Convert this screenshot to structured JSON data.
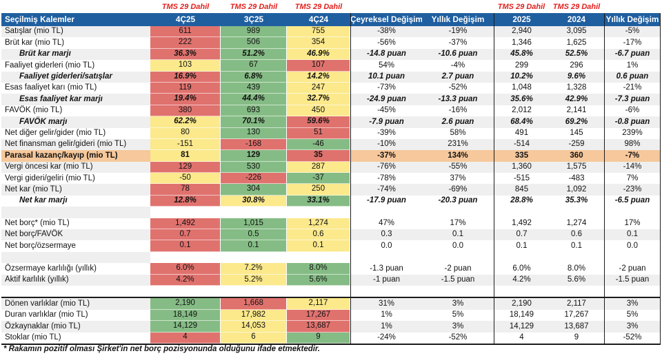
{
  "header": {
    "label": "Seçilmiş Kalemler",
    "tms_note": "TMS 29 Dahil",
    "columns": [
      "4Ç25",
      "3Ç25",
      "4Ç24",
      "Çeyreksel Değişim",
      "Yıllık Değişim",
      "2025",
      "2024",
      "Yıllık Değişim"
    ]
  },
  "colors": {
    "header_bg": "#1f5fa0",
    "header_text": "#ffffff",
    "tms_note_red": "#e0201c",
    "cell_red": "#e0726e",
    "cell_green": "#85bc85",
    "cell_yellow": "#fbe98c",
    "highlight_orange": "#f6c89b",
    "row_stripe": "#efefef"
  },
  "chart_data": {
    "type": "table",
    "title": "Seçilmiş Kalemler",
    "tms29_note_over_columns": [
      "4Ç25",
      "3Ç25",
      "4Ç24",
      "2025",
      "2024"
    ],
    "columns": [
      "Seçilmiş Kalemler",
      "4Ç25",
      "3Ç25",
      "4Ç24",
      "Çeyreksel Değişim",
      "Yıllık Değişim",
      "2025",
      "2024",
      "Yıllık Değişim"
    ],
    "rows": [
      {
        "label": "Satışlar (mio TL)",
        "style": "normal",
        "values": [
          "611",
          "989",
          "755",
          "-38%",
          "-19%",
          "2,940",
          "3,095",
          "-5%"
        ],
        "qc": [
          "red",
          "green",
          "yellow"
        ]
      },
      {
        "label": "Brüt kar (mio TL)",
        "style": "normal",
        "values": [
          "222",
          "506",
          "354",
          "-56%",
          "-37%",
          "1,346",
          "1,625",
          "-17%"
        ],
        "qc": [
          "red",
          "green",
          "yellow"
        ]
      },
      {
        "label": "Brüt kar marjı",
        "style": "margin",
        "values": [
          "36.3%",
          "51.2%",
          "46.9%",
          "-14.8 puan",
          "-10.6 puan",
          "45.8%",
          "52.5%",
          "-6.7 puan"
        ],
        "qc": [
          "red",
          "green",
          "yellow"
        ]
      },
      {
        "label": "Faaliyet giderleri (mio TL)",
        "style": "normal",
        "values": [
          "103",
          "67",
          "107",
          "54%",
          "-4%",
          "299",
          "296",
          "1%"
        ],
        "qc": [
          "yellow",
          "green",
          "red"
        ]
      },
      {
        "label": "Faaliyet giderleri/satışlar",
        "style": "margin",
        "values": [
          "16.9%",
          "6.8%",
          "14.2%",
          "10.1 puan",
          "2.7 puan",
          "10.2%",
          "9.6%",
          "0.6 puan"
        ],
        "qc": [
          "red",
          "green",
          "yellow"
        ]
      },
      {
        "label": "Esas faaliyet karı (mio TL)",
        "style": "normal",
        "values": [
          "119",
          "439",
          "247",
          "-73%",
          "-52%",
          "1,048",
          "1,328",
          "-21%"
        ],
        "qc": [
          "red",
          "green",
          "yellow"
        ]
      },
      {
        "label": "Esas faaliyet kar marjı",
        "style": "margin",
        "values": [
          "19.4%",
          "44.4%",
          "32.7%",
          "-24.9 puan",
          "-13.3 puan",
          "35.6%",
          "42.9%",
          "-7.3 puan"
        ],
        "qc": [
          "red",
          "green",
          "yellow"
        ]
      },
      {
        "label": "FAVÖK (mio TL)",
        "style": "normal",
        "values": [
          "380",
          "693",
          "450",
          "-45%",
          "-16%",
          "2,012",
          "2,141",
          "-6%"
        ],
        "qc": [
          "red",
          "green",
          "yellow"
        ]
      },
      {
        "label": "FAVÖK marjı",
        "style": "margin",
        "values": [
          "62.2%",
          "70.1%",
          "59.6%",
          "-7.9 puan",
          "2.6 puan",
          "68.4%",
          "69.2%",
          "-0.8 puan"
        ],
        "qc": [
          "yellow",
          "green",
          "red"
        ]
      },
      {
        "label": "Net diğer gelir/gider (mio TL)",
        "style": "normal",
        "values": [
          "80",
          "130",
          "51",
          "-39%",
          "58%",
          "491",
          "145",
          "239%"
        ],
        "qc": [
          "yellow",
          "green",
          "red"
        ]
      },
      {
        "label": "Net finansman gelir/gideri (mio TL)",
        "style": "normal",
        "values": [
          "-151",
          "-168",
          "-46",
          "-10%",
          "231%",
          "-514",
          "-259",
          "98%"
        ],
        "qc": [
          "yellow",
          "red",
          "green"
        ]
      },
      {
        "label": "Parasal kazanç/kayıp (mio TL)",
        "style": "highlight",
        "values": [
          "81",
          "129",
          "35",
          "-37%",
          "134%",
          "335",
          "360",
          "-7%"
        ],
        "qc": [
          "yellow",
          "green",
          "red"
        ]
      },
      {
        "label": "Vergi öncesi kar (mio TL)",
        "style": "normal",
        "values": [
          "129",
          "530",
          "287",
          "-76%",
          "-55%",
          "1,360",
          "1,575",
          "-14%"
        ],
        "qc": [
          "red",
          "green",
          "yellow"
        ]
      },
      {
        "label": "Vergi gideri/geliri (mio TL)",
        "style": "normal",
        "values": [
          "-50",
          "-226",
          "-37",
          "-78%",
          "37%",
          "-515",
          "-483",
          "7%"
        ],
        "qc": [
          "yellow",
          "red",
          "green"
        ]
      },
      {
        "label": "Net kar (mio TL)",
        "style": "normal",
        "values": [
          "78",
          "304",
          "250",
          "-74%",
          "-69%",
          "845",
          "1,092",
          "-23%"
        ],
        "qc": [
          "red",
          "green",
          "yellow"
        ]
      },
      {
        "label": "Net kar marjı",
        "style": "margin",
        "values": [
          "12.8%",
          "30.8%",
          "33.1%",
          "-17.9 puan",
          "-20.3 puan",
          "28.8%",
          "35.3%",
          "-6.5 puan"
        ],
        "qc": [
          "red",
          "yellow",
          "green"
        ]
      },
      {
        "spacer": true
      },
      {
        "label": "Net borç* (mio TL)",
        "style": "normal",
        "values": [
          "1,492",
          "1,015",
          "1,274",
          "47%",
          "17%",
          "1,492",
          "1,274",
          "17%"
        ],
        "qc": [
          "red",
          "green",
          "yellow"
        ]
      },
      {
        "label": "Net borç/FAVÖK",
        "style": "normal",
        "values": [
          "0.7",
          "0.5",
          "0.6",
          "0.3",
          "0.1",
          "0.7",
          "0.6",
          "0.1"
        ],
        "qc": [
          "red",
          "green",
          "yellow"
        ]
      },
      {
        "label": "Net borç/özsermaye",
        "style": "normal",
        "values": [
          "0.1",
          "0.1",
          "0.1",
          "0.0",
          "0.0",
          "0.1",
          "0.1",
          "0.0"
        ],
        "qc": [
          "red",
          "green",
          "yellow"
        ]
      },
      {
        "spacer": true
      },
      {
        "label": "Özsermaye karlılığı (yıllık)",
        "style": "normal",
        "values": [
          "6.0%",
          "7.2%",
          "8.0%",
          "-1.3 puan",
          "-2 puan",
          "6.0%",
          "8.0%",
          "-2 puan"
        ],
        "qc": [
          "red",
          "yellow",
          "green"
        ]
      },
      {
        "label": "Aktif karlılık (yıllık)",
        "style": "normal",
        "values": [
          "4.2%",
          "5.2%",
          "5.6%",
          "-1 puan",
          "-1.5 puan",
          "4.2%",
          "5.6%",
          "-1.5 puan"
        ],
        "qc": [
          "red",
          "yellow",
          "green"
        ]
      },
      {
        "spacer": true
      },
      {
        "label": "Dönen varlıklar (mio TL)",
        "style": "normal",
        "section_top": true,
        "values": [
          "2,190",
          "1,668",
          "2,117",
          "31%",
          "3%",
          "2,190",
          "2,117",
          "3%"
        ],
        "qc": [
          "green",
          "red",
          "yellow"
        ]
      },
      {
        "label": "Duran varlıklar (mio TL)",
        "style": "normal",
        "values": [
          "18,149",
          "17,982",
          "17,267",
          "1%",
          "5%",
          "18,149",
          "17,267",
          "5%"
        ],
        "qc": [
          "green",
          "yellow",
          "red"
        ]
      },
      {
        "label": "Özkaynaklar (mio TL)",
        "style": "normal",
        "values": [
          "14,129",
          "14,053",
          "13,687",
          "1%",
          "3%",
          "14,129",
          "13,687",
          "3%"
        ],
        "qc": [
          "green",
          "yellow",
          "red"
        ]
      },
      {
        "label": "Stoklar (mio TL)",
        "style": "normal",
        "section_bottom": true,
        "values": [
          "4",
          "6",
          "9",
          "-24%",
          "-52%",
          "4",
          "9",
          "-52%"
        ],
        "qc": [
          "red",
          "yellow",
          "green"
        ]
      }
    ]
  },
  "footnote": "* Rakamın pozitif olması Şirket'in net borç pozisyonunda olduğunu ifade etmektedir."
}
